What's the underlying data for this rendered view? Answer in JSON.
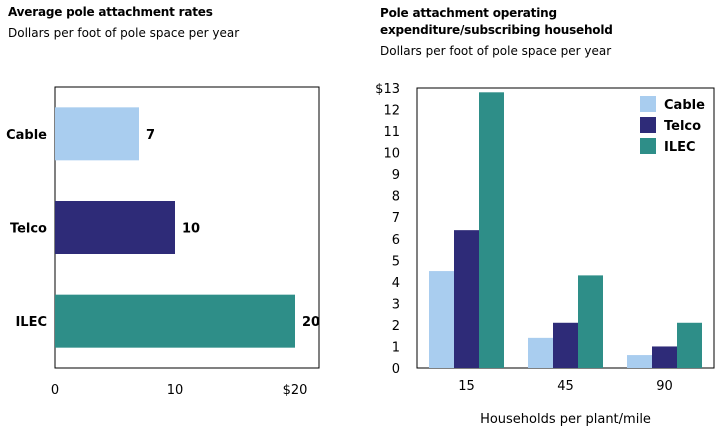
{
  "chart_data": [
    {
      "type": "bar",
      "orientation": "horizontal",
      "title": "Average pole attachment rates",
      "subtitle": "Dollars per foot of pole space per year",
      "categories": [
        "Cable",
        "Telco",
        "ILEC"
      ],
      "values": [
        7,
        10,
        20
      ],
      "data_labels": [
        "7",
        "10",
        "20"
      ],
      "xlim": [
        0,
        22
      ],
      "x_ticks": [
        0,
        10,
        20
      ],
      "x_tick_labels": [
        "0",
        "10",
        "$20"
      ],
      "colors": [
        "#a9cdef",
        "#2e2b78",
        "#2e8e88"
      ]
    },
    {
      "type": "bar",
      "title": "Pole attachment operating expenditure/subscribing household",
      "subtitle": "Dollars per foot of pole space per year",
      "xlabel": "Households per plant/mile",
      "categories": [
        "15",
        "45",
        "90"
      ],
      "series": [
        {
          "name": "Cable",
          "values": [
            4.5,
            1.4,
            0.6
          ],
          "color": "#a9cdef"
        },
        {
          "name": "Telco",
          "values": [
            6.4,
            2.1,
            1.0
          ],
          "color": "#2e2b78"
        },
        {
          "name": "ILEC",
          "values": [
            12.8,
            4.3,
            2.1
          ],
          "color": "#2e8e88"
        }
      ],
      "ylim": [
        0,
        13
      ],
      "y_ticks": [
        0,
        1,
        2,
        3,
        4,
        5,
        6,
        7,
        8,
        9,
        10,
        11,
        12,
        13
      ],
      "y_tick_labels": [
        "0",
        "1",
        "2",
        "3",
        "4",
        "5",
        "6",
        "7",
        "8",
        "9",
        "10",
        "11",
        "12",
        "$13"
      ],
      "legend": "top-right"
    }
  ]
}
